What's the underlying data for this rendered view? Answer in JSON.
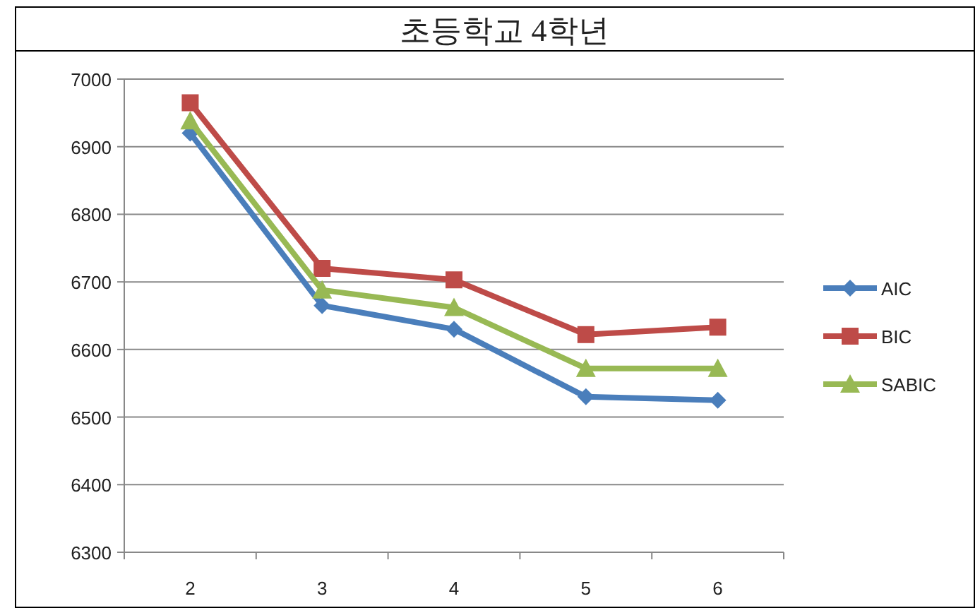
{
  "chart_data": {
    "type": "line",
    "title": "초등학교 4학년",
    "categories": [
      "2",
      "3",
      "4",
      "5",
      "6"
    ],
    "series": [
      {
        "name": "AIC",
        "color": "#4a7ebb",
        "marker": "diamond",
        "values": [
          6920,
          6665,
          6630,
          6530,
          6525
        ]
      },
      {
        "name": "BIC",
        "color": "#be4b48",
        "marker": "square",
        "values": [
          6965,
          6720,
          6703,
          6622,
          6633
        ]
      },
      {
        "name": "SABIC",
        "color": "#98b954",
        "marker": "triangle",
        "values": [
          6938,
          6688,
          6662,
          6572,
          6572
        ]
      }
    ],
    "ylim": [
      6300,
      7000
    ],
    "yticks": [
      6300,
      6400,
      6500,
      6600,
      6700,
      6800,
      6900,
      7000
    ],
    "grid": "y",
    "legend": "right",
    "line_style": "solid"
  }
}
